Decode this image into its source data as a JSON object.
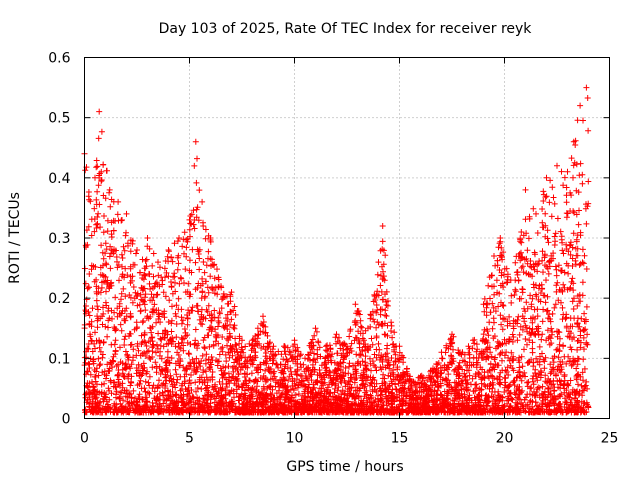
{
  "chart_data": {
    "type": "scatter",
    "title": "Day 103 of 2025, Rate Of TEC Index for receiver reyk",
    "xlabel": "GPS time / hours",
    "ylabel": "ROTI / TECUs",
    "xlim": [
      0,
      25
    ],
    "ylim": [
      0,
      0.6
    ],
    "grid": true,
    "marker": "+",
    "marker_color": "#ff0000",
    "x_ticks": [
      {
        "value": 0,
        "label": "0"
      },
      {
        "value": 5,
        "label": "5"
      },
      {
        "value": 10,
        "label": "10"
      },
      {
        "value": 15,
        "label": "15"
      },
      {
        "value": 20,
        "label": "20"
      },
      {
        "value": 25,
        "label": "25"
      }
    ],
    "y_ticks": [
      {
        "value": 0,
        "label": "0"
      },
      {
        "value": 0.1,
        "label": "0.1"
      },
      {
        "value": 0.2,
        "label": "0.2"
      },
      {
        "value": 0.3,
        "label": "0.3"
      },
      {
        "value": 0.4,
        "label": "0.4"
      },
      {
        "value": 0.5,
        "label": "0.5"
      },
      {
        "value": 0.6,
        "label": "0.6"
      }
    ],
    "x_data_range": [
      0,
      24
    ],
    "upper_envelope": [
      {
        "x": 0.0,
        "y": 0.44
      },
      {
        "x": 0.5,
        "y": 0.4
      },
      {
        "x": 0.7,
        "y": 0.51
      },
      {
        "x": 1.2,
        "y": 0.38
      },
      {
        "x": 1.6,
        "y": 0.36
      },
      {
        "x": 2.0,
        "y": 0.34
      },
      {
        "x": 2.5,
        "y": 0.28
      },
      {
        "x": 3.0,
        "y": 0.3
      },
      {
        "x": 3.5,
        "y": 0.26
      },
      {
        "x": 4.0,
        "y": 0.28
      },
      {
        "x": 4.5,
        "y": 0.3
      },
      {
        "x": 5.0,
        "y": 0.33
      },
      {
        "x": 5.3,
        "y": 0.46
      },
      {
        "x": 5.6,
        "y": 0.36
      },
      {
        "x": 6.0,
        "y": 0.3
      },
      {
        "x": 6.5,
        "y": 0.22
      },
      {
        "x": 7.0,
        "y": 0.21
      },
      {
        "x": 7.5,
        "y": 0.13
      },
      {
        "x": 8.0,
        "y": 0.13
      },
      {
        "x": 8.5,
        "y": 0.17
      },
      {
        "x": 9.0,
        "y": 0.12
      },
      {
        "x": 9.5,
        "y": 0.12
      },
      {
        "x": 10.0,
        "y": 0.13
      },
      {
        "x": 10.5,
        "y": 0.1
      },
      {
        "x": 11.0,
        "y": 0.15
      },
      {
        "x": 11.5,
        "y": 0.12
      },
      {
        "x": 12.0,
        "y": 0.14
      },
      {
        "x": 12.5,
        "y": 0.12
      },
      {
        "x": 12.9,
        "y": 0.19
      },
      {
        "x": 13.5,
        "y": 0.15
      },
      {
        "x": 14.0,
        "y": 0.26
      },
      {
        "x": 14.2,
        "y": 0.32
      },
      {
        "x": 14.6,
        "y": 0.16
      },
      {
        "x": 15.0,
        "y": 0.12
      },
      {
        "x": 15.5,
        "y": 0.07
      },
      {
        "x": 16.0,
        "y": 0.07
      },
      {
        "x": 16.5,
        "y": 0.08
      },
      {
        "x": 17.0,
        "y": 0.11
      },
      {
        "x": 17.5,
        "y": 0.14
      },
      {
        "x": 18.0,
        "y": 0.11
      },
      {
        "x": 18.5,
        "y": 0.13
      },
      {
        "x": 19.0,
        "y": 0.19
      },
      {
        "x": 19.5,
        "y": 0.27
      },
      {
        "x": 19.8,
        "y": 0.3
      },
      {
        "x": 20.3,
        "y": 0.23
      },
      {
        "x": 20.8,
        "y": 0.31
      },
      {
        "x": 21.0,
        "y": 0.38
      },
      {
        "x": 21.5,
        "y": 0.34
      },
      {
        "x": 22.0,
        "y": 0.4
      },
      {
        "x": 22.5,
        "y": 0.42
      },
      {
        "x": 23.0,
        "y": 0.41
      },
      {
        "x": 23.3,
        "y": 0.46
      },
      {
        "x": 23.6,
        "y": 0.52
      },
      {
        "x": 23.9,
        "y": 0.55
      }
    ],
    "baseline_min": 0.01
  }
}
